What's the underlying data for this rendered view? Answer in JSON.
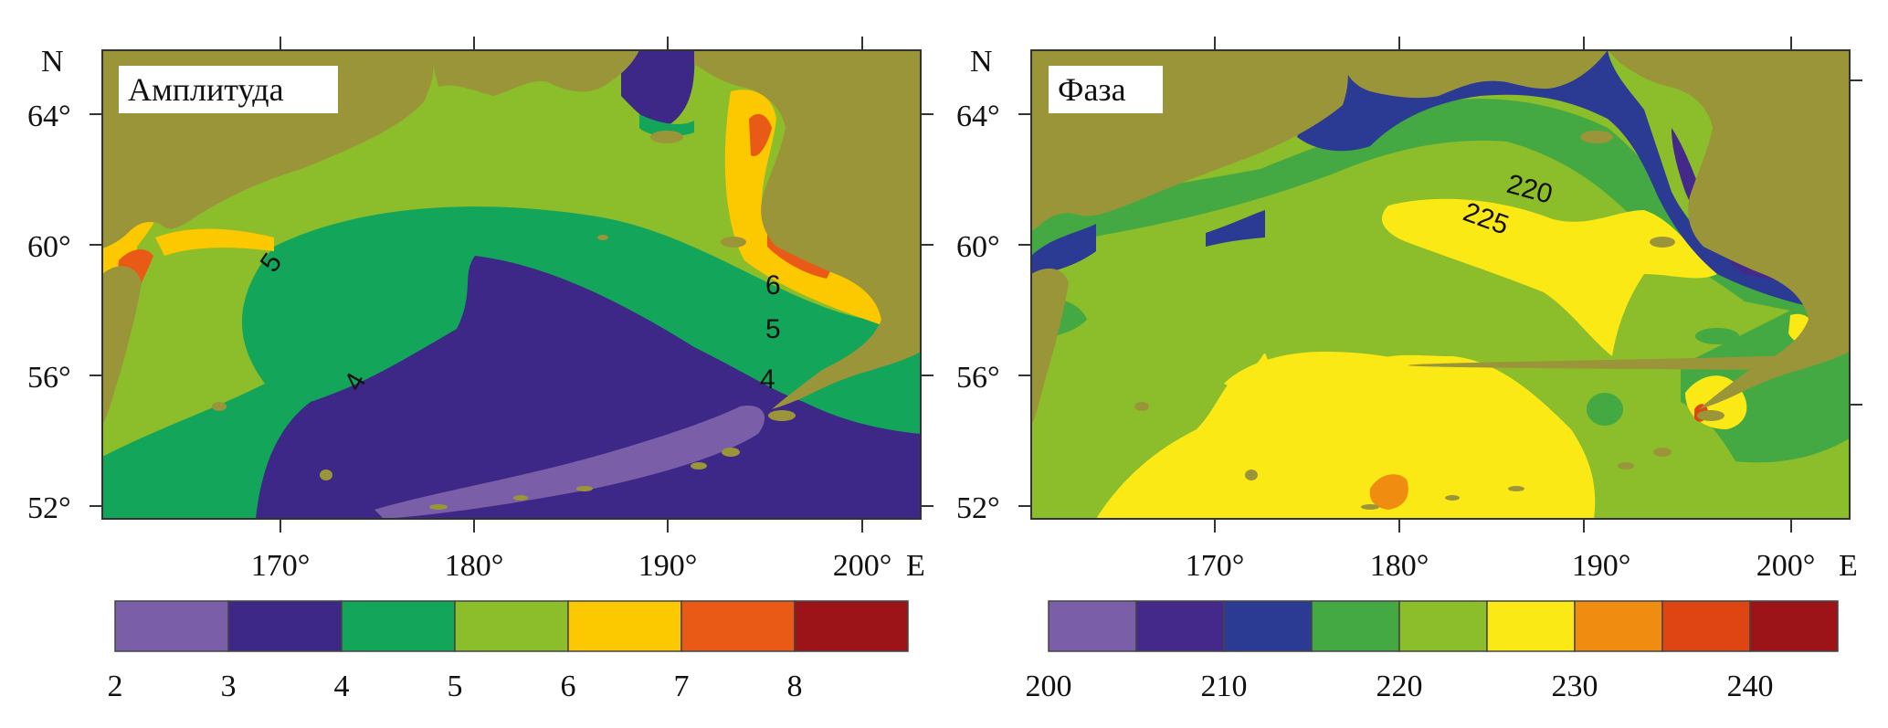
{
  "axes": {
    "north_label": "N",
    "east_label": "E",
    "lat_ticks": [
      "64°",
      "60°",
      "56°",
      "52°"
    ],
    "lon_ticks": [
      "170°",
      "180°",
      "190°",
      "200°"
    ]
  },
  "panels": [
    {
      "title": "Амплитуда",
      "contour_labels": [
        "5",
        "4",
        "6",
        "5",
        "4"
      ],
      "colorbar": {
        "tick_labels": [
          "2",
          "3",
          "4",
          "5",
          "6",
          "7",
          "8"
        ],
        "colors": [
          "#7b5ea8",
          "#3e2887",
          "#13a55a",
          "#8cbd2a",
          "#fcc800",
          "#e85a16",
          "#9c1418"
        ]
      }
    },
    {
      "title": "Фаза",
      "contour_labels": [
        "220",
        "225"
      ],
      "colorbar": {
        "tick_labels": [
          "200",
          "210",
          "220",
          "230",
          "240"
        ],
        "colors": [
          "#7b5ea8",
          "#44288a",
          "#2b3a92",
          "#44a843",
          "#8cbd2a",
          "#fbe916",
          "#f08d10",
          "#df4512",
          "#9c1418"
        ]
      }
    }
  ],
  "colors": {
    "land": "#9b9539",
    "frame": "#333333"
  }
}
